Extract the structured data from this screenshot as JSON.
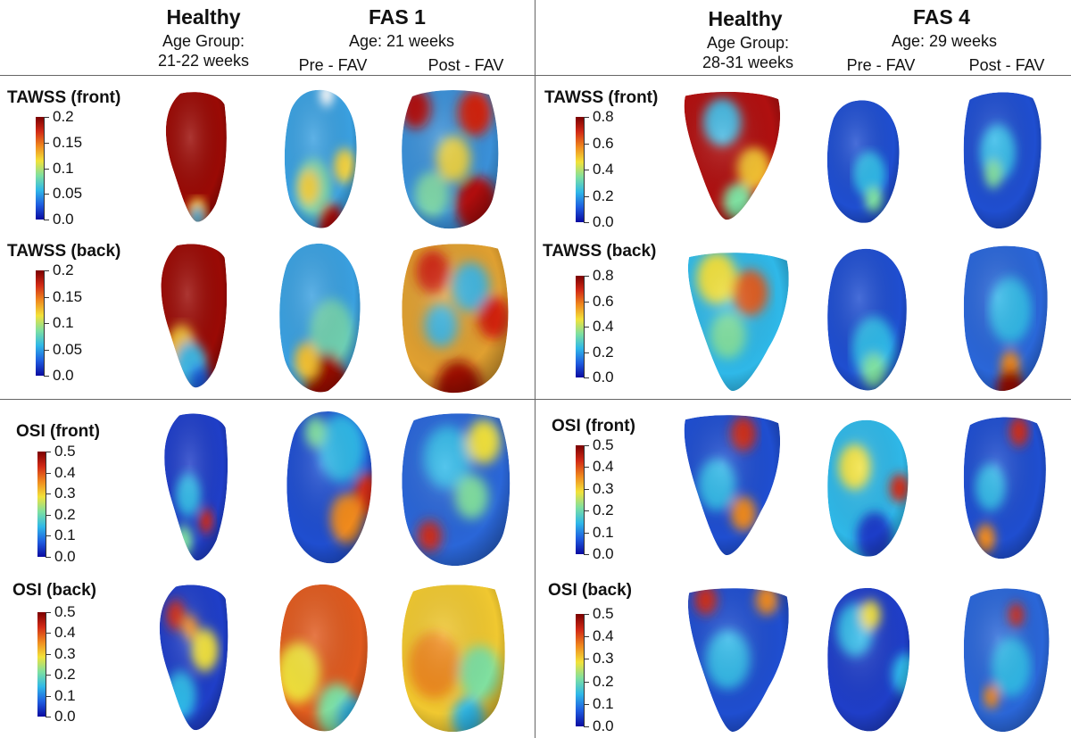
{
  "left": {
    "healthy": {
      "title": "Healthy",
      "age_label": "Age Group:",
      "age_value": "21-22 weeks"
    },
    "fas": {
      "title": "FAS 1",
      "age": "Age: 21 weeks",
      "pre": "Pre - FAV",
      "post": "Post - FAV"
    },
    "rows": [
      {
        "label": "TAWSS (front)",
        "ticks": [
          "0.2",
          "0.15",
          "0.1",
          "0.05",
          "0.0"
        ]
      },
      {
        "label": "TAWSS (back)",
        "ticks": [
          "0.2",
          "0.15",
          "0.1",
          "0.05",
          "0.0"
        ]
      },
      {
        "label": "OSI (front)",
        "ticks": [
          "0.5",
          "0.4",
          "0.3",
          "0.2",
          "0.1",
          "0.0"
        ]
      },
      {
        "label": "OSI (back)",
        "ticks": [
          "0.5",
          "0.4",
          "0.3",
          "0.2",
          "0.1",
          "0.0"
        ]
      }
    ]
  },
  "right": {
    "healthy": {
      "title": "Healthy",
      "age_label": "Age Group:",
      "age_value": "28-31 weeks"
    },
    "fas": {
      "title": "FAS 4",
      "age": "Age: 29 weeks",
      "pre": "Pre - FAV",
      "post": "Post - FAV"
    },
    "rows": [
      {
        "label": "TAWSS (front)",
        "ticks": [
          "0.8",
          "0.6",
          "0.4",
          "0.2",
          "0.0"
        ]
      },
      {
        "label": "TAWSS (back)",
        "ticks": [
          "0.8",
          "0.6",
          "0.4",
          "0.2",
          "0.0"
        ]
      },
      {
        "label": "OSI (front)",
        "ticks": [
          "0.5",
          "0.4",
          "0.3",
          "0.2",
          "0.1",
          "0.0"
        ]
      },
      {
        "label": "OSI (back)",
        "ticks": [
          "0.5",
          "0.4",
          "0.3",
          "0.2",
          "0.1",
          "0.0"
        ]
      }
    ]
  },
  "colors": {
    "colormap": [
      "#0a0aa0",
      "#1f5de0",
      "#2fb8e8",
      "#7fe0a0",
      "#f2e23a",
      "#f08a1e",
      "#d22a16",
      "#7a0000"
    ]
  }
}
